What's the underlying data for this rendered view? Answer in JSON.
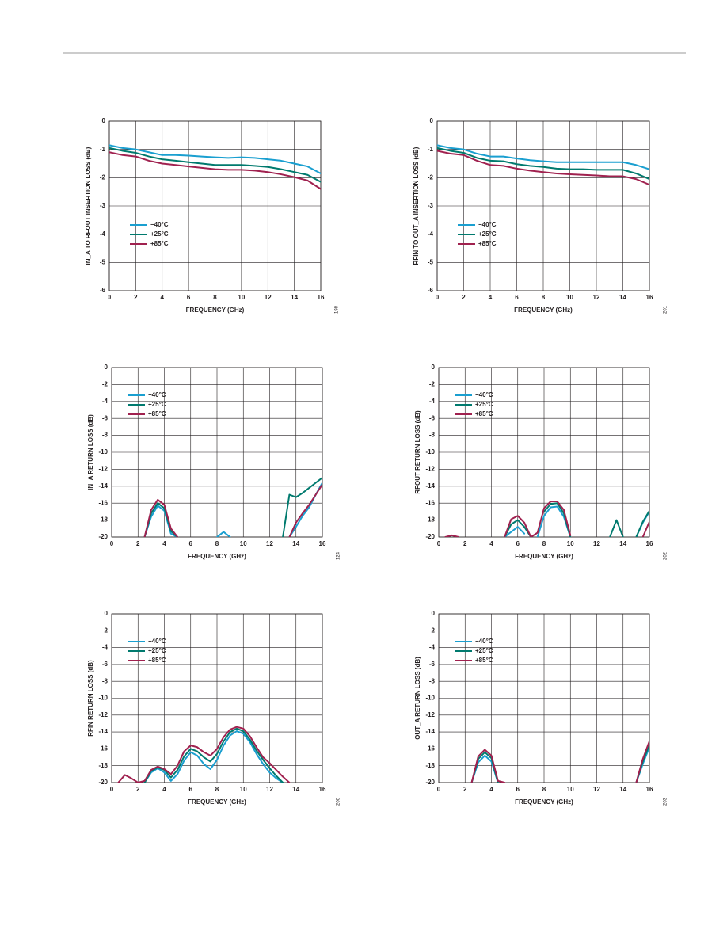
{
  "chart_data": [
    {
      "type": "line",
      "y_label": "IN_A TO RFOUT INSERTION LOSS (dB)",
      "x_label": "FREQUENCY (GHz)",
      "figure_id": "198",
      "x": [
        0,
        1,
        2,
        3,
        4,
        5,
        6,
        7,
        8,
        9,
        10,
        11,
        12,
        13,
        14,
        15,
        16
      ],
      "xlim": [
        0,
        16
      ],
      "xticks": [
        0,
        2,
        4,
        6,
        8,
        10,
        12,
        14,
        16
      ],
      "ylim": [
        -6,
        0
      ],
      "yticks": [
        0,
        -1,
        -2,
        -3,
        -4,
        -5,
        -6
      ],
      "grid": true,
      "series": [
        {
          "name": "−40°C",
          "color": "#1a9fd0",
          "values": [
            -0.85,
            -0.95,
            -1.0,
            -1.1,
            -1.2,
            -1.2,
            -1.22,
            -1.25,
            -1.28,
            -1.3,
            -1.28,
            -1.3,
            -1.35,
            -1.4,
            -1.5,
            -1.6,
            -1.85
          ]
        },
        {
          "name": "+25°C",
          "color": "#007a6e",
          "values": [
            -0.95,
            -1.05,
            -1.12,
            -1.25,
            -1.35,
            -1.4,
            -1.45,
            -1.5,
            -1.55,
            -1.55,
            -1.55,
            -1.58,
            -1.62,
            -1.7,
            -1.8,
            -1.9,
            -2.15
          ]
        },
        {
          "name": "+85°C",
          "color": "#a0214f",
          "values": [
            -1.1,
            -1.2,
            -1.25,
            -1.4,
            -1.5,
            -1.55,
            -1.6,
            -1.65,
            -1.7,
            -1.72,
            -1.72,
            -1.75,
            -1.8,
            -1.88,
            -1.98,
            -2.1,
            -2.4
          ]
        }
      ]
    },
    {
      "type": "line",
      "y_label": "RFIN TO OUT_A INSERTION LOSS (dB)",
      "x_label": "FREQUENCY (GHz)",
      "figure_id": "201",
      "x": [
        0,
        1,
        2,
        3,
        4,
        5,
        6,
        7,
        8,
        9,
        10,
        11,
        12,
        13,
        14,
        15,
        16
      ],
      "xlim": [
        0,
        16
      ],
      "xticks": [
        0,
        2,
        4,
        6,
        8,
        10,
        12,
        14,
        16
      ],
      "ylim": [
        -6,
        0
      ],
      "yticks": [
        0,
        -1,
        -2,
        -3,
        -4,
        -5,
        -6
      ],
      "grid": true,
      "series": [
        {
          "name": "−40°C",
          "color": "#1a9fd0",
          "values": [
            -0.85,
            -0.95,
            -1.0,
            -1.15,
            -1.25,
            -1.25,
            -1.32,
            -1.38,
            -1.42,
            -1.45,
            -1.45,
            -1.45,
            -1.45,
            -1.45,
            -1.45,
            -1.55,
            -1.7
          ]
        },
        {
          "name": "+25°C",
          "color": "#007a6e",
          "values": [
            -0.95,
            -1.05,
            -1.12,
            -1.3,
            -1.4,
            -1.42,
            -1.52,
            -1.58,
            -1.62,
            -1.68,
            -1.7,
            -1.7,
            -1.72,
            -1.72,
            -1.72,
            -1.85,
            -2.05
          ]
        },
        {
          "name": "+85°C",
          "color": "#a0214f",
          "values": [
            -1.05,
            -1.15,
            -1.2,
            -1.4,
            -1.55,
            -1.58,
            -1.68,
            -1.75,
            -1.8,
            -1.85,
            -1.88,
            -1.9,
            -1.92,
            -1.95,
            -1.95,
            -2.05,
            -2.25
          ]
        }
      ]
    },
    {
      "type": "line",
      "y_label": "IN_A RETURN LOSS (dB)",
      "x_label": "FREQUENCY (GHz)",
      "figure_id": "124",
      "x": [
        0,
        0.5,
        1,
        1.5,
        2,
        2.5,
        3,
        3.5,
        4,
        4.5,
        5,
        5.5,
        6,
        6.5,
        7,
        7.5,
        8,
        8.5,
        9,
        9.5,
        10,
        10.5,
        11,
        11.5,
        12,
        12.5,
        13,
        13.5,
        14,
        14.5,
        15,
        15.5,
        16
      ],
      "xlim": [
        0,
        16
      ],
      "xticks": [
        0,
        2,
        4,
        6,
        8,
        10,
        12,
        14,
        16
      ],
      "ylim": [
        -20,
        0
      ],
      "yticks": [
        0,
        -2,
        -4,
        -6,
        -8,
        -10,
        -12,
        -14,
        -16,
        -18,
        -20
      ],
      "grid": true,
      "series": [
        {
          "name": "−40°C",
          "color": "#1a9fd0",
          "values": [
            null,
            null,
            null,
            null,
            null,
            -20,
            -17.6,
            -16.3,
            -16.9,
            -19.6,
            -20,
            null,
            null,
            null,
            null,
            null,
            -20,
            -19.4,
            -20,
            null,
            null,
            null,
            null,
            null,
            null,
            null,
            null,
            -20,
            -18.8,
            -17.5,
            -16.5,
            -15,
            -13.6
          ]
        },
        {
          "name": "+25°C",
          "color": "#007a6e",
          "values": [
            null,
            null,
            null,
            null,
            null,
            -20,
            -17.2,
            -16,
            -16.6,
            -19.3,
            -20,
            null,
            null,
            null,
            null,
            null,
            null,
            null,
            null,
            null,
            null,
            null,
            null,
            null,
            null,
            null,
            -20,
            -15,
            -15.3,
            -14.8,
            -14.2,
            -13.6,
            -13
          ]
        },
        {
          "name": "+85°C",
          "color": "#a0214f",
          "values": [
            null,
            null,
            null,
            null,
            null,
            -20,
            -16.8,
            -15.6,
            -16.2,
            -19,
            -20,
            null,
            null,
            null,
            null,
            null,
            null,
            null,
            null,
            null,
            null,
            null,
            null,
            null,
            null,
            null,
            null,
            -20,
            -18.3,
            -17.2,
            -16.2,
            -15,
            -13.8
          ]
        }
      ]
    },
    {
      "type": "line",
      "y_label": "RFOUT RETURN LOSS (dB)",
      "x_label": "FREQUENCY (GHz)",
      "figure_id": "202",
      "x": [
        0,
        0.5,
        1,
        1.5,
        2,
        2.5,
        3,
        3.5,
        4,
        4.5,
        5,
        5.5,
        6,
        6.5,
        7,
        7.5,
        8,
        8.5,
        9,
        9.5,
        10,
        10.5,
        11,
        11.5,
        12,
        12.5,
        13,
        13.5,
        14,
        14.5,
        15,
        15.5,
        16
      ],
      "xlim": [
        0,
        16
      ],
      "xticks": [
        0,
        2,
        4,
        6,
        8,
        10,
        12,
        14,
        16
      ],
      "ylim": [
        -20,
        0
      ],
      "yticks": [
        0,
        -2,
        -4,
        -6,
        -8,
        -10,
        -12,
        -14,
        -16,
        -18,
        -20
      ],
      "grid": true,
      "series": [
        {
          "name": "−40°C",
          "color": "#1a9fd0",
          "values": [
            null,
            null,
            null,
            null,
            null,
            null,
            null,
            null,
            null,
            null,
            -20,
            -19.4,
            -18.8,
            -19.6,
            null,
            -20,
            -17.5,
            -16.5,
            -16.4,
            -17.6,
            -20,
            null,
            null,
            null,
            null,
            null,
            null,
            null,
            null,
            null,
            -20,
            -18.3,
            -17
          ]
        },
        {
          "name": "+25°C",
          "color": "#007a6e",
          "values": [
            null,
            null,
            null,
            null,
            null,
            null,
            null,
            null,
            null,
            null,
            -20,
            -18.5,
            -18,
            -18.8,
            -20,
            null,
            -17,
            -16.1,
            -16,
            -17.2,
            -20,
            null,
            null,
            null,
            null,
            null,
            -20,
            -18,
            -20,
            null,
            -20,
            -18.2,
            -16.9
          ]
        },
        {
          "name": "+85°C",
          "color": "#a0214f",
          "values": [
            null,
            -20,
            -19.8,
            -20,
            null,
            null,
            null,
            null,
            null,
            null,
            -20,
            -17.9,
            -17.5,
            -18.3,
            -20,
            -19.5,
            -16.6,
            -15.8,
            -15.8,
            -16.8,
            -19.8,
            null,
            null,
            null,
            null,
            null,
            null,
            null,
            null,
            null,
            null,
            -20,
            -18.2
          ]
        }
      ]
    },
    {
      "type": "line",
      "y_label": "RFIN RETURN LOSS (dB)",
      "x_label": "FREQUENCY (GHz)",
      "figure_id": "200",
      "x": [
        0,
        0.5,
        1,
        1.5,
        2,
        2.5,
        3,
        3.5,
        4,
        4.5,
        5,
        5.5,
        6,
        6.5,
        7,
        7.5,
        8,
        8.5,
        9,
        9.5,
        10,
        10.5,
        11,
        11.5,
        12,
        12.5,
        13,
        13.5,
        14,
        14.5,
        15,
        15.5,
        16
      ],
      "xlim": [
        0,
        16
      ],
      "xticks": [
        0,
        2,
        4,
        6,
        8,
        10,
        12,
        14,
        16
      ],
      "ylim": [
        -20,
        0
      ],
      "yticks": [
        0,
        -2,
        -4,
        -6,
        -8,
        -10,
        -12,
        -14,
        -16,
        -18,
        -20
      ],
      "grid": true,
      "series": [
        {
          "name": "−40°C",
          "color": "#1a9fd0",
          "values": [
            null,
            null,
            null,
            null,
            null,
            -20,
            -18.8,
            -18.3,
            -18.8,
            -19.8,
            -19,
            -17.4,
            -16.4,
            -16.8,
            -17.8,
            -18.4,
            -17.3,
            -15.6,
            -14.4,
            -13.9,
            -14.2,
            -15.2,
            -16.6,
            -17.8,
            -18.8,
            -19.5,
            -20,
            null,
            null,
            null,
            null,
            null,
            null
          ]
        },
        {
          "name": "+25°C",
          "color": "#007a6e",
          "values": [
            null,
            null,
            null,
            null,
            null,
            -20,
            -18.6,
            -18.2,
            -18.5,
            -19.4,
            -18.5,
            -16.9,
            -16,
            -16.3,
            -17,
            -17.5,
            -16.6,
            -15.1,
            -14,
            -13.6,
            -13.9,
            -14.9,
            -16.2,
            -17.3,
            -18.3,
            -19.2,
            -20,
            null,
            null,
            null,
            null,
            null,
            null
          ]
        },
        {
          "name": "+85°C",
          "color": "#a0214f",
          "values": [
            null,
            -20,
            -19.1,
            -19.5,
            -20,
            -19.8,
            -18.5,
            -18.1,
            -18.4,
            -19,
            -18,
            -16.3,
            -15.6,
            -15.8,
            -16.4,
            -16.8,
            -16,
            -14.6,
            -13.7,
            -13.4,
            -13.6,
            -14.5,
            -15.8,
            -17,
            -17.7,
            -18.5,
            -19.3,
            -20,
            null,
            null,
            null,
            null,
            null
          ]
        }
      ]
    },
    {
      "type": "line",
      "y_label": "OUT_A RETURN LOSS (dB)",
      "x_label": "FREQUENCY (GHz)",
      "figure_id": "203",
      "x": [
        0,
        0.5,
        1,
        1.5,
        2,
        2.5,
        3,
        3.5,
        4,
        4.5,
        5,
        5.5,
        6,
        6.5,
        7,
        7.5,
        8,
        8.5,
        9,
        9.5,
        10,
        10.5,
        11,
        11.5,
        12,
        12.5,
        13,
        13.5,
        14,
        14.5,
        15,
        15.5,
        16
      ],
      "xlim": [
        0,
        16
      ],
      "xticks": [
        0,
        2,
        4,
        6,
        8,
        10,
        12,
        14,
        16
      ],
      "ylim": [
        -20,
        0
      ],
      "yticks": [
        0,
        -2,
        -4,
        -6,
        -8,
        -10,
        -12,
        -14,
        -16,
        -18,
        -20
      ],
      "grid": true,
      "series": [
        {
          "name": "−40°C",
          "color": "#1a9fd0",
          "values": [
            null,
            null,
            null,
            null,
            null,
            -20,
            -17.6,
            -16.8,
            -17.5,
            -20,
            null,
            null,
            null,
            null,
            null,
            null,
            null,
            null,
            null,
            null,
            null,
            null,
            null,
            null,
            null,
            null,
            null,
            null,
            null,
            null,
            -20,
            -17.8,
            -15.8
          ]
        },
        {
          "name": "+25°C",
          "color": "#007a6e",
          "values": [
            null,
            null,
            null,
            null,
            null,
            -20,
            -17.2,
            -16.4,
            -17.1,
            -20,
            null,
            null,
            null,
            null,
            null,
            null,
            null,
            null,
            null,
            null,
            null,
            null,
            null,
            null,
            null,
            null,
            null,
            null,
            null,
            null,
            -20,
            -17.5,
            -15.5
          ]
        },
        {
          "name": "+85°C",
          "color": "#a0214f",
          "values": [
            null,
            null,
            null,
            null,
            null,
            -20,
            -16.9,
            -16.1,
            -16.8,
            -19.8,
            -20,
            null,
            null,
            null,
            null,
            null,
            null,
            null,
            null,
            null,
            null,
            null,
            null,
            null,
            null,
            null,
            null,
            null,
            null,
            null,
            -20,
            -17.2,
            -15.1
          ]
        }
      ]
    }
  ]
}
